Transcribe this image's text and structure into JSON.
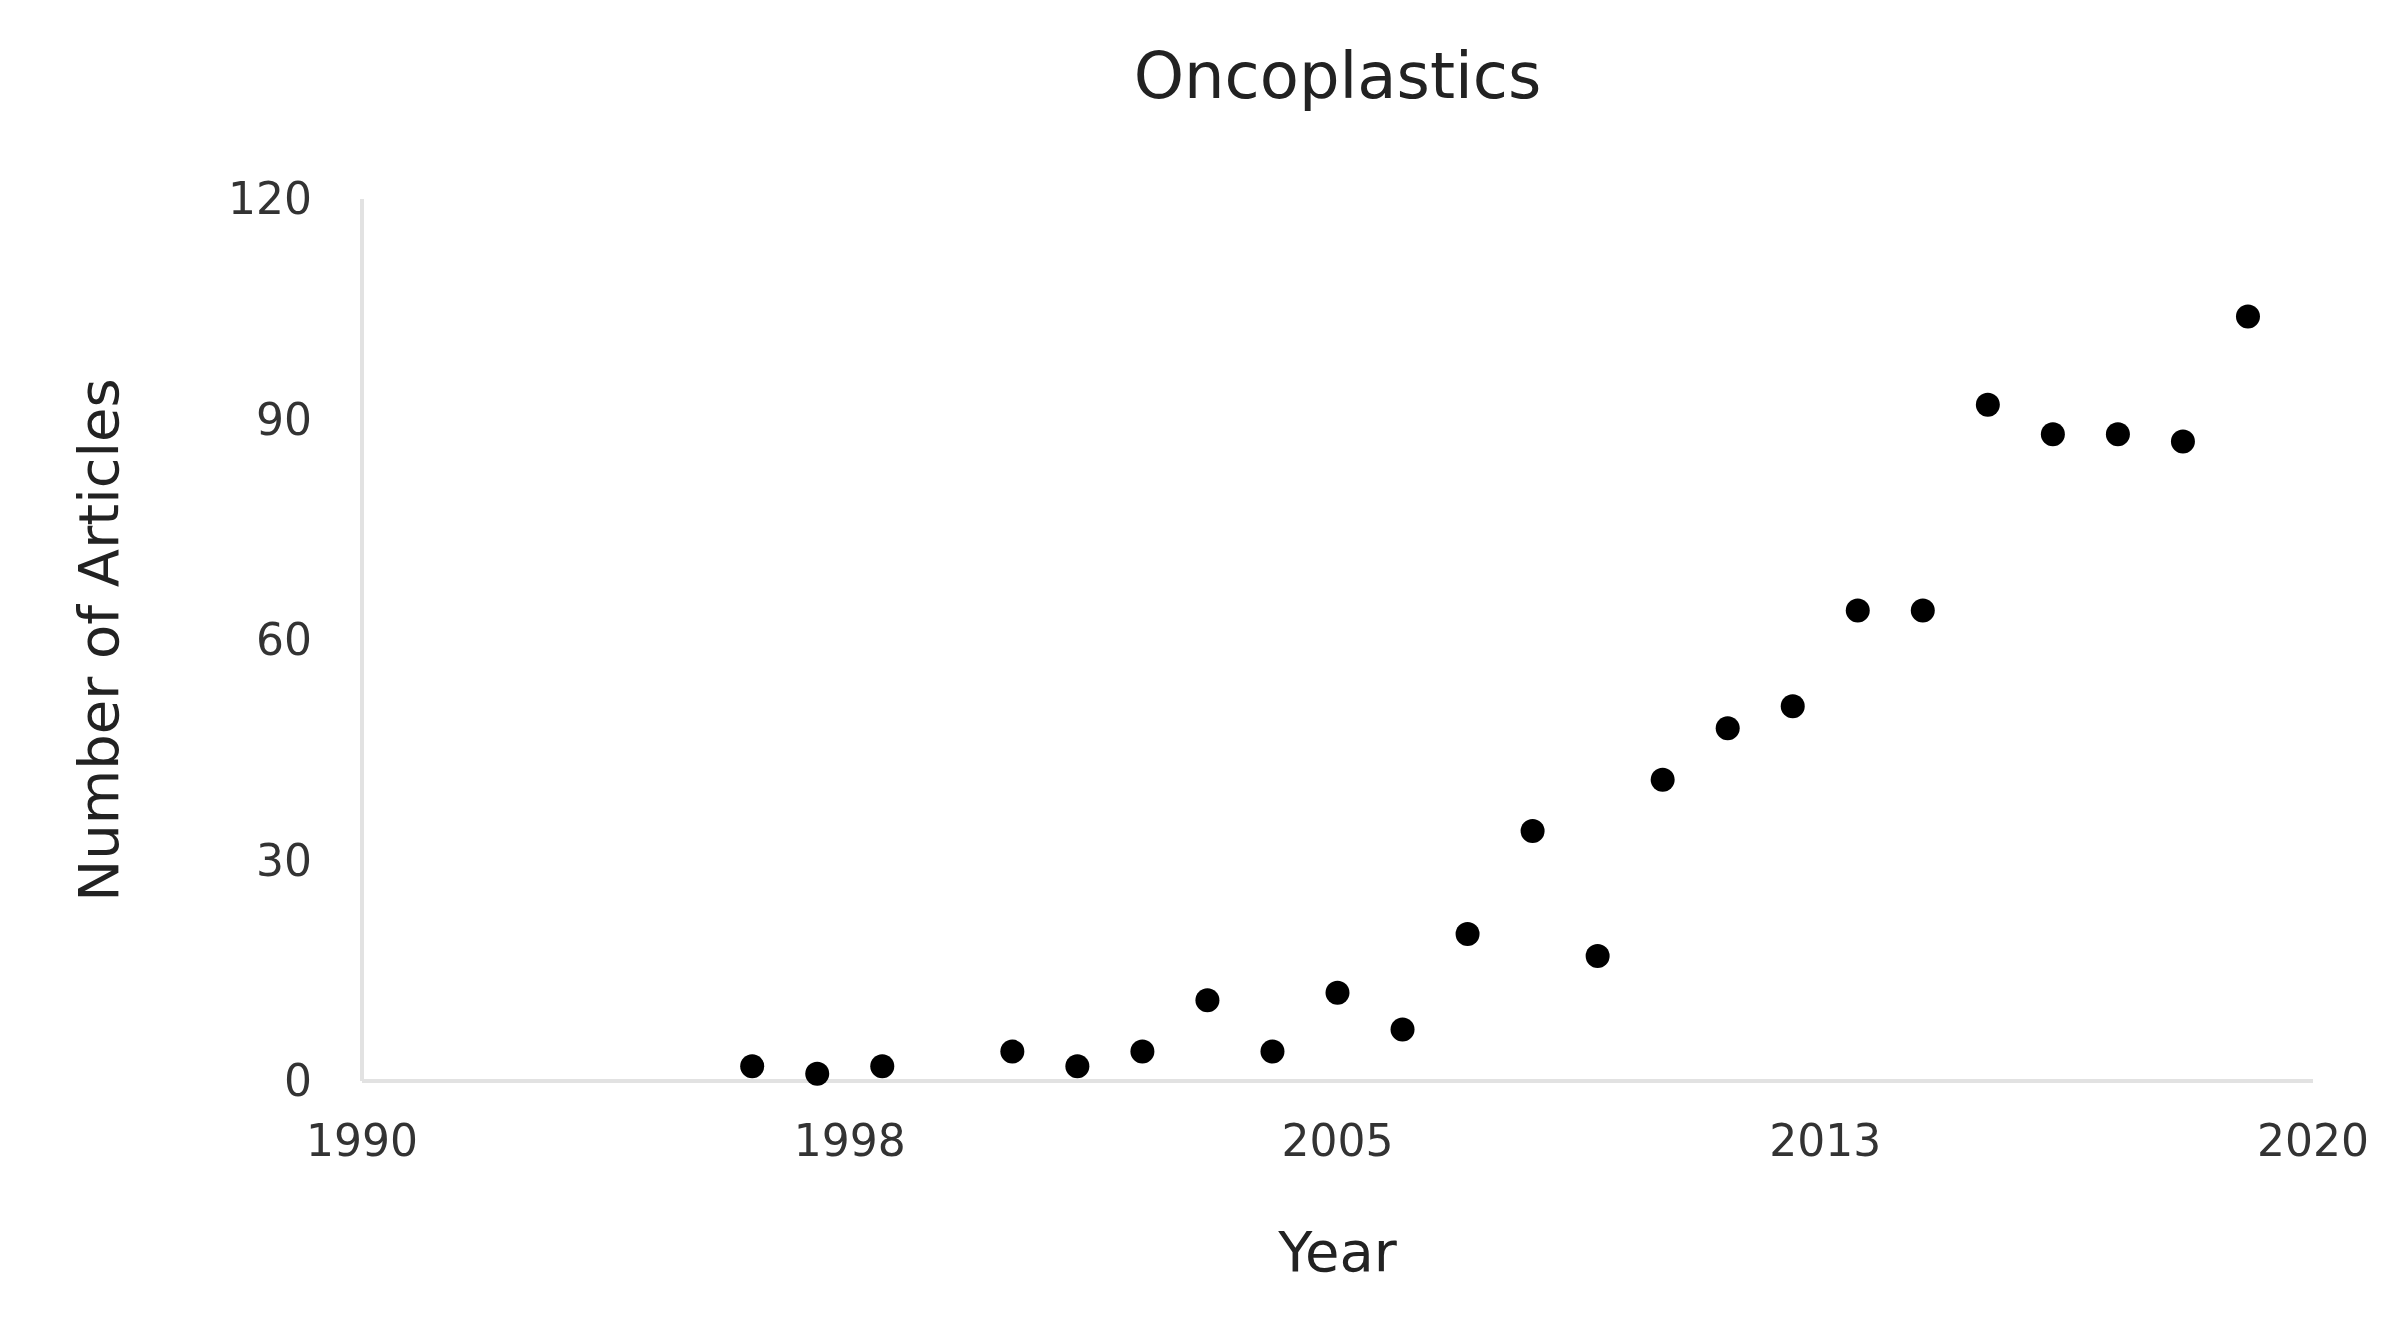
{
  "chart_data": {
    "type": "scatter",
    "title": "Oncoplastics",
    "xlabel": "Year",
    "ylabel": "Number of Articles",
    "x": [
      1996,
      1997,
      1998,
      2000,
      2001,
      2002,
      2003,
      2004,
      2005,
      2006,
      2007,
      2008,
      2009,
      2010,
      2011,
      2012,
      2013,
      2014,
      2015,
      2016,
      2017,
      2018,
      2019
    ],
    "values": [
      2,
      1,
      2,
      4,
      2,
      4,
      11,
      4,
      12,
      7,
      20,
      34,
      17,
      41,
      48,
      51,
      64,
      64,
      92,
      88,
      88,
      87,
      104
    ],
    "color": "#000000",
    "marker": "circle",
    "grid": false,
    "xlim": [
      1990,
      2020
    ],
    "xticks": [
      1990,
      {
        "value": 1997.5,
        "label": "1998"
      },
      2005,
      {
        "value": 2012.5,
        "label": "2013"
      },
      2020
    ],
    "ylim": [
      0,
      120
    ],
    "yticks": [
      0,
      30,
      60,
      90,
      120
    ]
  }
}
